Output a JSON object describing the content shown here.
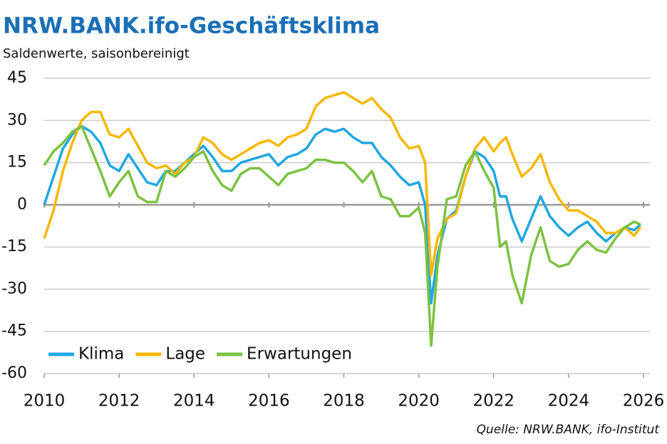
{
  "chart_data": {
    "type": "line",
    "title": "NRW.BANK.ifo-Geschäftsklima",
    "subtitle": "Saldenwerte, saisonbereinigt",
    "source": "Quelle: NRW.BANK, ifo-Institut",
    "x": [
      2010,
      2010.25,
      2010.5,
      2010.75,
      2011,
      2011.25,
      2011.5,
      2011.75,
      2012,
      2012.25,
      2012.5,
      2012.75,
      2013,
      2013.25,
      2013.5,
      2013.75,
      2014,
      2014.25,
      2014.5,
      2014.75,
      2015,
      2015.25,
      2015.5,
      2015.75,
      2016,
      2016.25,
      2016.5,
      2016.75,
      2017,
      2017.25,
      2017.5,
      2017.75,
      2018,
      2018.25,
      2018.5,
      2018.75,
      2019,
      2019.25,
      2019.5,
      2019.75,
      2020,
      2020.17,
      2020.33,
      2020.5,
      2020.75,
      2021,
      2021.25,
      2021.5,
      2021.75,
      2022,
      2022.17,
      2022.33,
      2022.5,
      2022.75,
      2023,
      2023.25,
      2023.5,
      2023.75,
      2024,
      2024.25,
      2024.5,
      2024.75,
      2025,
      2025.25,
      2025.5,
      2025.75,
      2025.92
    ],
    "series": [
      {
        "name": "Klima",
        "color": "#1fa8e0",
        "values": [
          0,
          10,
          20,
          25,
          28,
          26,
          22,
          14,
          12,
          18,
          13,
          8,
          7,
          12,
          12,
          15,
          18,
          21,
          17,
          12,
          12,
          15,
          16,
          17,
          18,
          14,
          17,
          18,
          20,
          25,
          27,
          26,
          27,
          24,
          22,
          22,
          17,
          14,
          10,
          7,
          8,
          0,
          -35,
          -18,
          -5,
          -2,
          10,
          19,
          17,
          12,
          3,
          3,
          -5,
          -13,
          -5,
          3,
          -4,
          -8,
          -11,
          -8,
          -6,
          -10,
          -13,
          -10,
          -8,
          -9,
          -7
        ]
      },
      {
        "name": "Lage",
        "color": "#f6b800",
        "values": [
          -12,
          -2,
          12,
          22,
          30,
          33,
          33,
          25,
          24,
          27,
          21,
          15,
          13,
          14,
          11,
          15,
          17,
          24,
          22,
          18,
          16,
          18,
          20,
          22,
          23,
          21,
          24,
          25,
          27,
          35,
          38,
          39,
          40,
          38,
          36,
          38,
          34,
          31,
          24,
          20,
          21,
          15,
          -25,
          -12,
          -5,
          -3,
          10,
          20,
          24,
          19,
          22,
          24,
          18,
          10,
          13,
          18,
          8,
          2,
          -2,
          -2,
          -4,
          -6,
          -10,
          -10,
          -8,
          -11,
          -8
        ]
      },
      {
        "name": "Erwartungen",
        "color": "#7cc242",
        "values": [
          14,
          19,
          22,
          26,
          28,
          20,
          12,
          3,
          8,
          12,
          3,
          1,
          1,
          12,
          10,
          13,
          17,
          19,
          12,
          7,
          5,
          11,
          13,
          13,
          10,
          7,
          11,
          12,
          13,
          16,
          16,
          15,
          15,
          12,
          8,
          12,
          3,
          2,
          -4,
          -4,
          -1,
          -10,
          -50,
          -22,
          2,
          3,
          14,
          19,
          12,
          6,
          -15,
          -13,
          -25,
          -35,
          -18,
          -8,
          -20,
          -22,
          -21,
          -16,
          -13,
          -16,
          -17,
          -12,
          -8,
          -6,
          -7
        ]
      }
    ],
    "xlim": [
      2010,
      2026
    ],
    "xticks": [
      2010,
      2012,
      2014,
      2016,
      2018,
      2020,
      2022,
      2024,
      2026
    ],
    "ylim": [
      -60,
      45
    ],
    "yticks": [
      45,
      30,
      15,
      0,
      -15,
      -30,
      -45,
      -60
    ],
    "grid": true,
    "legend": "bottom-left"
  }
}
